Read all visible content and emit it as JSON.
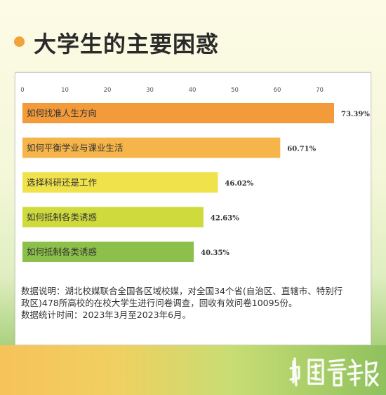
{
  "title": "大学生的主要困惑",
  "colors": {
    "accent_dot": "#f2a23a",
    "bars": [
      "#f39a3a",
      "#f6b54a",
      "#f0e24a",
      "#cfdb3d",
      "#8cc04a"
    ]
  },
  "chart_data": {
    "type": "bar",
    "orientation": "horizontal",
    "categories": [
      "如何找准人生方向",
      "如何平衡学业与课业生活",
      "选择科研还是工作",
      "如何抵制各类诱惑",
      "如何抵制各类诱惑"
    ],
    "values": [
      73.39,
      60.71,
      46.02,
      42.63,
      40.35
    ],
    "value_labels": [
      "73.39%",
      "60.71%",
      "46.02%",
      "42.63%",
      "40.35%"
    ],
    "xticks": [
      "0",
      "10",
      "20",
      "30",
      "40",
      "50",
      "60",
      "70"
    ],
    "xlim": [
      0,
      70
    ],
    "legend": "none",
    "grid": false
  },
  "notes": {
    "line1": "数据说明：湖北校媒联合全国各区域校媒，对全国34个省(自治区、直辖市、特别行",
    "line2": "政区)478所高校的在校大学生进行问卷调查，回收有效问卷10095份。",
    "line3": "数据统计时间：2023年3月至2023年6月。"
  },
  "logo": {
    "icon": "china-youth-daily-calligraphy-logo"
  }
}
